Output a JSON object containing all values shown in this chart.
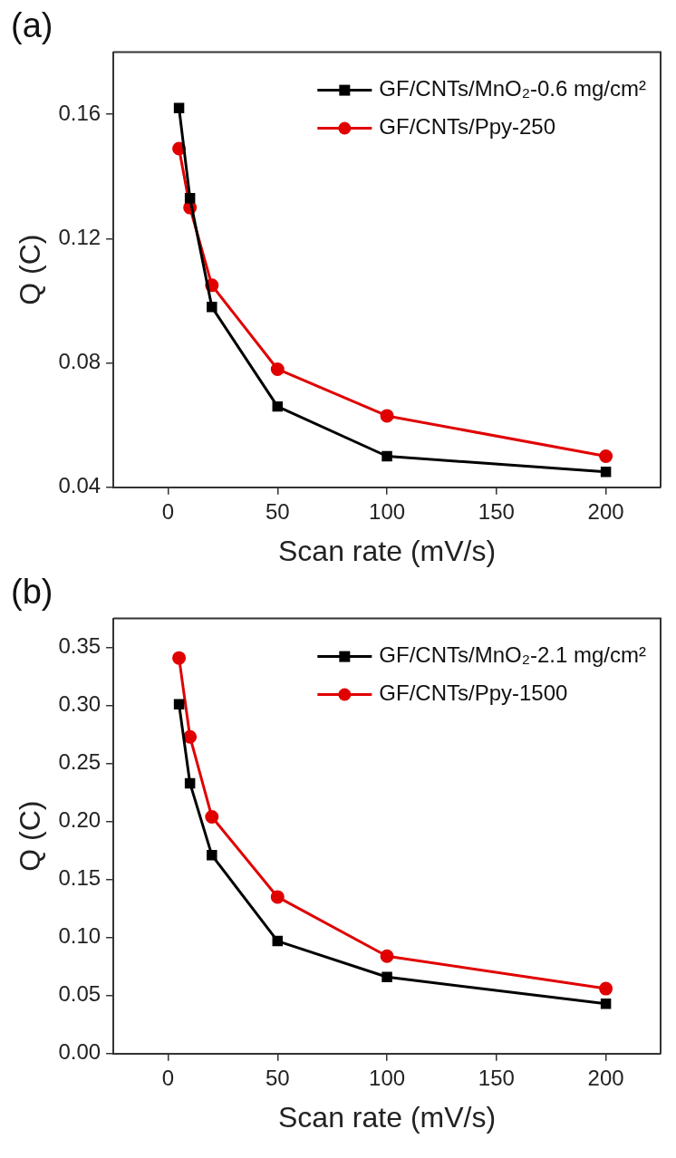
{
  "chart_data": [
    {
      "type": "line",
      "title": "(a)",
      "xlabel": "Scan rate (mV/s)",
      "ylabel": "Q (C)",
      "x": [
        5,
        10,
        20,
        50,
        100,
        200
      ],
      "xlim": [
        -25,
        225
      ],
      "xticks": [
        0,
        50,
        100,
        150,
        200
      ],
      "ylim": [
        0.04,
        0.18
      ],
      "yticks": [
        0.04,
        0.08,
        0.12,
        0.16
      ],
      "legend": "top right",
      "series": [
        {
          "name": "GF/CNTs/MnO₂-0.6 mg/cm²",
          "color": "#000000",
          "marker": "square",
          "values": [
            0.162,
            0.133,
            0.098,
            0.066,
            0.05,
            0.045
          ]
        },
        {
          "name": "GF/CNTs/Ppy-250",
          "color": "#e00000",
          "marker": "circle",
          "values": [
            0.149,
            0.13,
            0.105,
            0.078,
            0.063,
            0.05
          ]
        }
      ]
    },
    {
      "type": "line",
      "title": "(b)",
      "xlabel": "Scan rate (mV/s)",
      "ylabel": "Q (C)",
      "x": [
        5,
        10,
        20,
        50,
        100,
        200
      ],
      "xlim": [
        -25,
        225
      ],
      "xticks": [
        0,
        50,
        100,
        150,
        200
      ],
      "ylim": [
        0,
        0.375
      ],
      "yticks": [
        {
          "value": 0,
          "label": "0.00"
        },
        0.05,
        {
          "value": 0.1,
          "label": "0.10"
        },
        0.15,
        {
          "value": 0.2,
          "label": "0.20"
        },
        0.25,
        {
          "value": 0.3,
          "label": "0.30"
        },
        0.35
      ],
      "legend": "top right",
      "series": [
        {
          "name": "GF/CNTs/MnO₂-2.1 mg/cm²",
          "color": "#000000",
          "marker": "square",
          "values": [
            0.301,
            0.233,
            0.171,
            0.097,
            0.066,
            0.043
          ]
        },
        {
          "name": "GF/CNTs/Ppy-1500",
          "color": "#e00000",
          "marker": "circle",
          "values": [
            0.341,
            0.273,
            0.204,
            0.135,
            0.084,
            0.056
          ]
        }
      ]
    }
  ]
}
